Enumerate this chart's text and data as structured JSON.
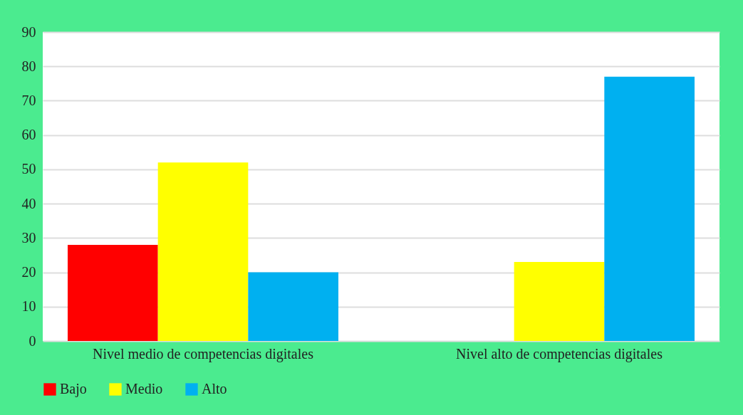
{
  "chart_data": {
    "type": "bar",
    "categories": [
      "Nivel medio de competencias digitales",
      "Nivel alto de competencias digitales"
    ],
    "series": [
      {
        "name": "Bajo",
        "color": "#ff0000",
        "values": [
          28,
          0
        ]
      },
      {
        "name": "Medio",
        "color": "#ffff00",
        "values": [
          52,
          23
        ]
      },
      {
        "name": "Alto",
        "color": "#00b0f0",
        "values": [
          20,
          77
        ]
      }
    ],
    "ylim": [
      0,
      90
    ],
    "yticks": [
      0,
      10,
      20,
      30,
      40,
      50,
      60,
      70,
      80,
      90
    ],
    "grid": "y",
    "legend": "bottom"
  }
}
